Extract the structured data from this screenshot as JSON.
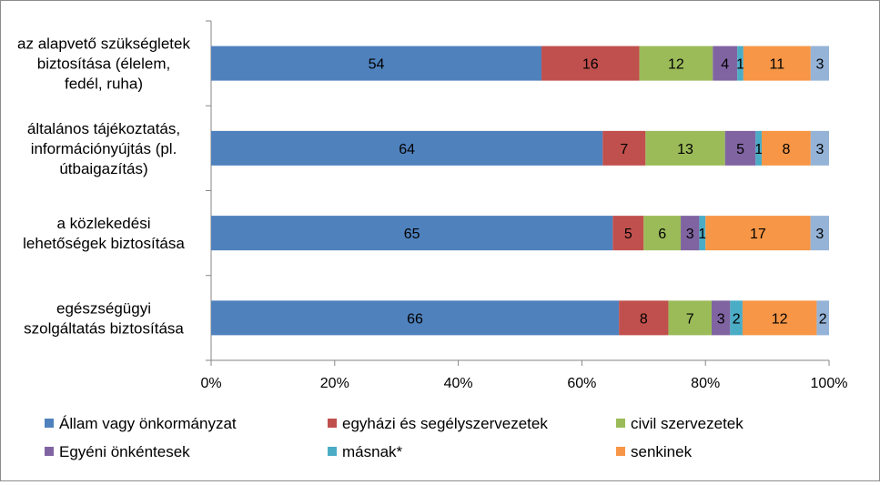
{
  "chart_data": {
    "type": "bar",
    "orientation": "horizontal",
    "stacking": "percent",
    "categories": [
      [
        "az alapvető szükségletek",
        "biztosítása (élelem,",
        "fedél, ruha)"
      ],
      [
        "általános tájékoztatás,",
        "információnyújtás (pl.",
        "útbaigazítás)"
      ],
      [
        "a közlekedési",
        "lehetőségek biztosítása"
      ],
      [
        "egészségügyi",
        "szolgáltatás biztosítása"
      ]
    ],
    "series": [
      {
        "name": "Állam vagy önkormányzat",
        "color": "#4f81bd",
        "values": [
          54,
          64,
          65,
          66
        ]
      },
      {
        "name": "egyházi és segélyszervezetek",
        "color": "#c0504d",
        "values": [
          16,
          7,
          5,
          8
        ]
      },
      {
        "name": "civil szervezetek",
        "color": "#9bbb59",
        "values": [
          12,
          13,
          6,
          7
        ]
      },
      {
        "name": "Egyéni önkéntesek",
        "color": "#8064a2",
        "values": [
          4,
          5,
          3,
          3
        ]
      },
      {
        "name": "másnak*",
        "color": "#4bacc6",
        "values": [
          1,
          1,
          1,
          2
        ]
      },
      {
        "name": "senkinek",
        "color": "#f79646",
        "values": [
          11,
          8,
          17,
          12
        ]
      },
      {
        "name": "",
        "color": "#95b3d7",
        "values": [
          3,
          3,
          3,
          2
        ]
      }
    ],
    "x_ticks": [
      "0%",
      "20%",
      "40%",
      "60%",
      "80%",
      "100%"
    ],
    "xlim": [
      0,
      100
    ],
    "legend_position": "bottom",
    "grid": false
  }
}
